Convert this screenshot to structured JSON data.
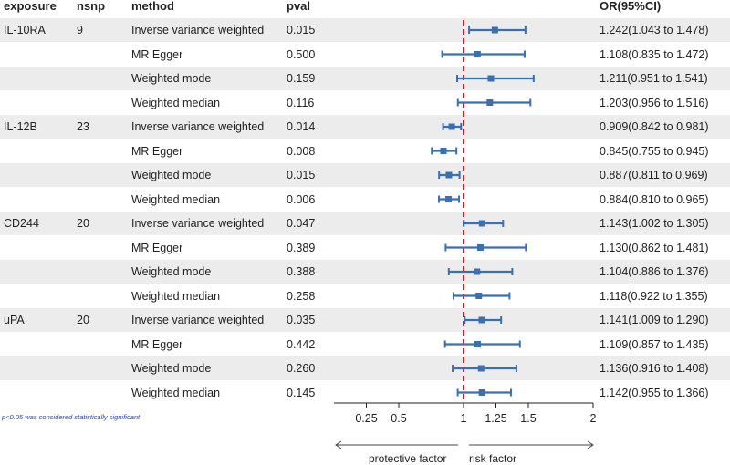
{
  "headers": {
    "exposure": "exposure",
    "nsnp": "nsnp",
    "method": "method",
    "pval": "pval",
    "or": "OR(95%CI)"
  },
  "rows": [
    {
      "exposure": "IL-10RA",
      "nsnp": "9",
      "method": "Inverse variance weighted",
      "pval": "0.015",
      "or_text": "1.242(1.043 to 1.478)"
    },
    {
      "exposure": "",
      "nsnp": "",
      "method": "MR Egger",
      "pval": "0.500",
      "or_text": "1.108(0.835 to 1.472)"
    },
    {
      "exposure": "",
      "nsnp": "",
      "method": "Weighted mode",
      "pval": "0.159",
      "or_text": "1.211(0.951 to 1.541)"
    },
    {
      "exposure": "",
      "nsnp": "",
      "method": "Weighted median",
      "pval": "0.116",
      "or_text": "1.203(0.956 to 1.516)"
    },
    {
      "exposure": "IL-12B",
      "nsnp": "23",
      "method": "Inverse variance weighted",
      "pval": "0.014",
      "or_text": "0.909(0.842 to 0.981)"
    },
    {
      "exposure": "",
      "nsnp": "",
      "method": "MR Egger",
      "pval": "0.008",
      "or_text": "0.845(0.755 to 0.945)"
    },
    {
      "exposure": "",
      "nsnp": "",
      "method": "Weighted mode",
      "pval": "0.015",
      "or_text": "0.887(0.811 to 0.969)"
    },
    {
      "exposure": "",
      "nsnp": "",
      "method": "Weighted median",
      "pval": "0.006",
      "or_text": "0.884(0.810 to 0.965)"
    },
    {
      "exposure": "CD244",
      "nsnp": "20",
      "method": "Inverse variance weighted",
      "pval": "0.047",
      "or_text": "1.143(1.002 to 1.305)"
    },
    {
      "exposure": "",
      "nsnp": "",
      "method": "MR Egger",
      "pval": "0.389",
      "or_text": "1.130(0.862 to 1.481)"
    },
    {
      "exposure": "",
      "nsnp": "",
      "method": "Weighted mode",
      "pval": "0.388",
      "or_text": "1.104(0.886 to 1.376)"
    },
    {
      "exposure": "",
      "nsnp": "",
      "method": "Weighted median",
      "pval": "0.258",
      "or_text": "1.118(0.922 to 1.355)"
    },
    {
      "exposure": "uPA",
      "nsnp": "20",
      "method": "Inverse variance weighted",
      "pval": "0.035",
      "or_text": "1.141(1.009 to 1.290)"
    },
    {
      "exposure": "",
      "nsnp": "",
      "method": "MR Egger",
      "pval": "0.442",
      "or_text": "1.109(0.857 to 1.435)"
    },
    {
      "exposure": "",
      "nsnp": "",
      "method": "Weighted mode",
      "pval": "0.260",
      "or_text": "1.136(0.916 to 1.408)"
    },
    {
      "exposure": "",
      "nsnp": "",
      "method": "Weighted median",
      "pval": "0.145",
      "or_text": "1.142(0.955 to 1.366)"
    }
  ],
  "chart_data": {
    "type": "forest",
    "x_ticks": [
      0.25,
      0.5,
      1,
      1.25,
      1.5,
      2
    ],
    "x_tick_labels": [
      "0.25",
      "0.5",
      "1",
      "1.25",
      "1.5",
      "2"
    ],
    "x_range": [
      0,
      2
    ],
    "reference_line": 1,
    "or": [
      1.242,
      1.108,
      1.211,
      1.203,
      0.909,
      0.845,
      0.887,
      0.884,
      1.143,
      1.13,
      1.104,
      1.118,
      1.141,
      1.109,
      1.136,
      1.142
    ],
    "lower": [
      1.043,
      0.835,
      0.951,
      0.956,
      0.842,
      0.755,
      0.811,
      0.81,
      1.002,
      0.862,
      0.886,
      0.922,
      1.009,
      0.857,
      0.916,
      0.955
    ],
    "upper": [
      1.478,
      1.472,
      1.541,
      1.516,
      0.981,
      0.945,
      0.969,
      0.965,
      1.305,
      1.481,
      1.376,
      1.355,
      1.29,
      1.435,
      1.408,
      1.366
    ],
    "left_arrow_label": "protective factor",
    "right_arrow_label": "risk factor"
  },
  "colors": {
    "marker": "#3a6fb0",
    "ref_line": "#e0141e",
    "band": "#ececec",
    "note": "#2a3fc0"
  },
  "note": "p<0.05 was considered statistically significant"
}
